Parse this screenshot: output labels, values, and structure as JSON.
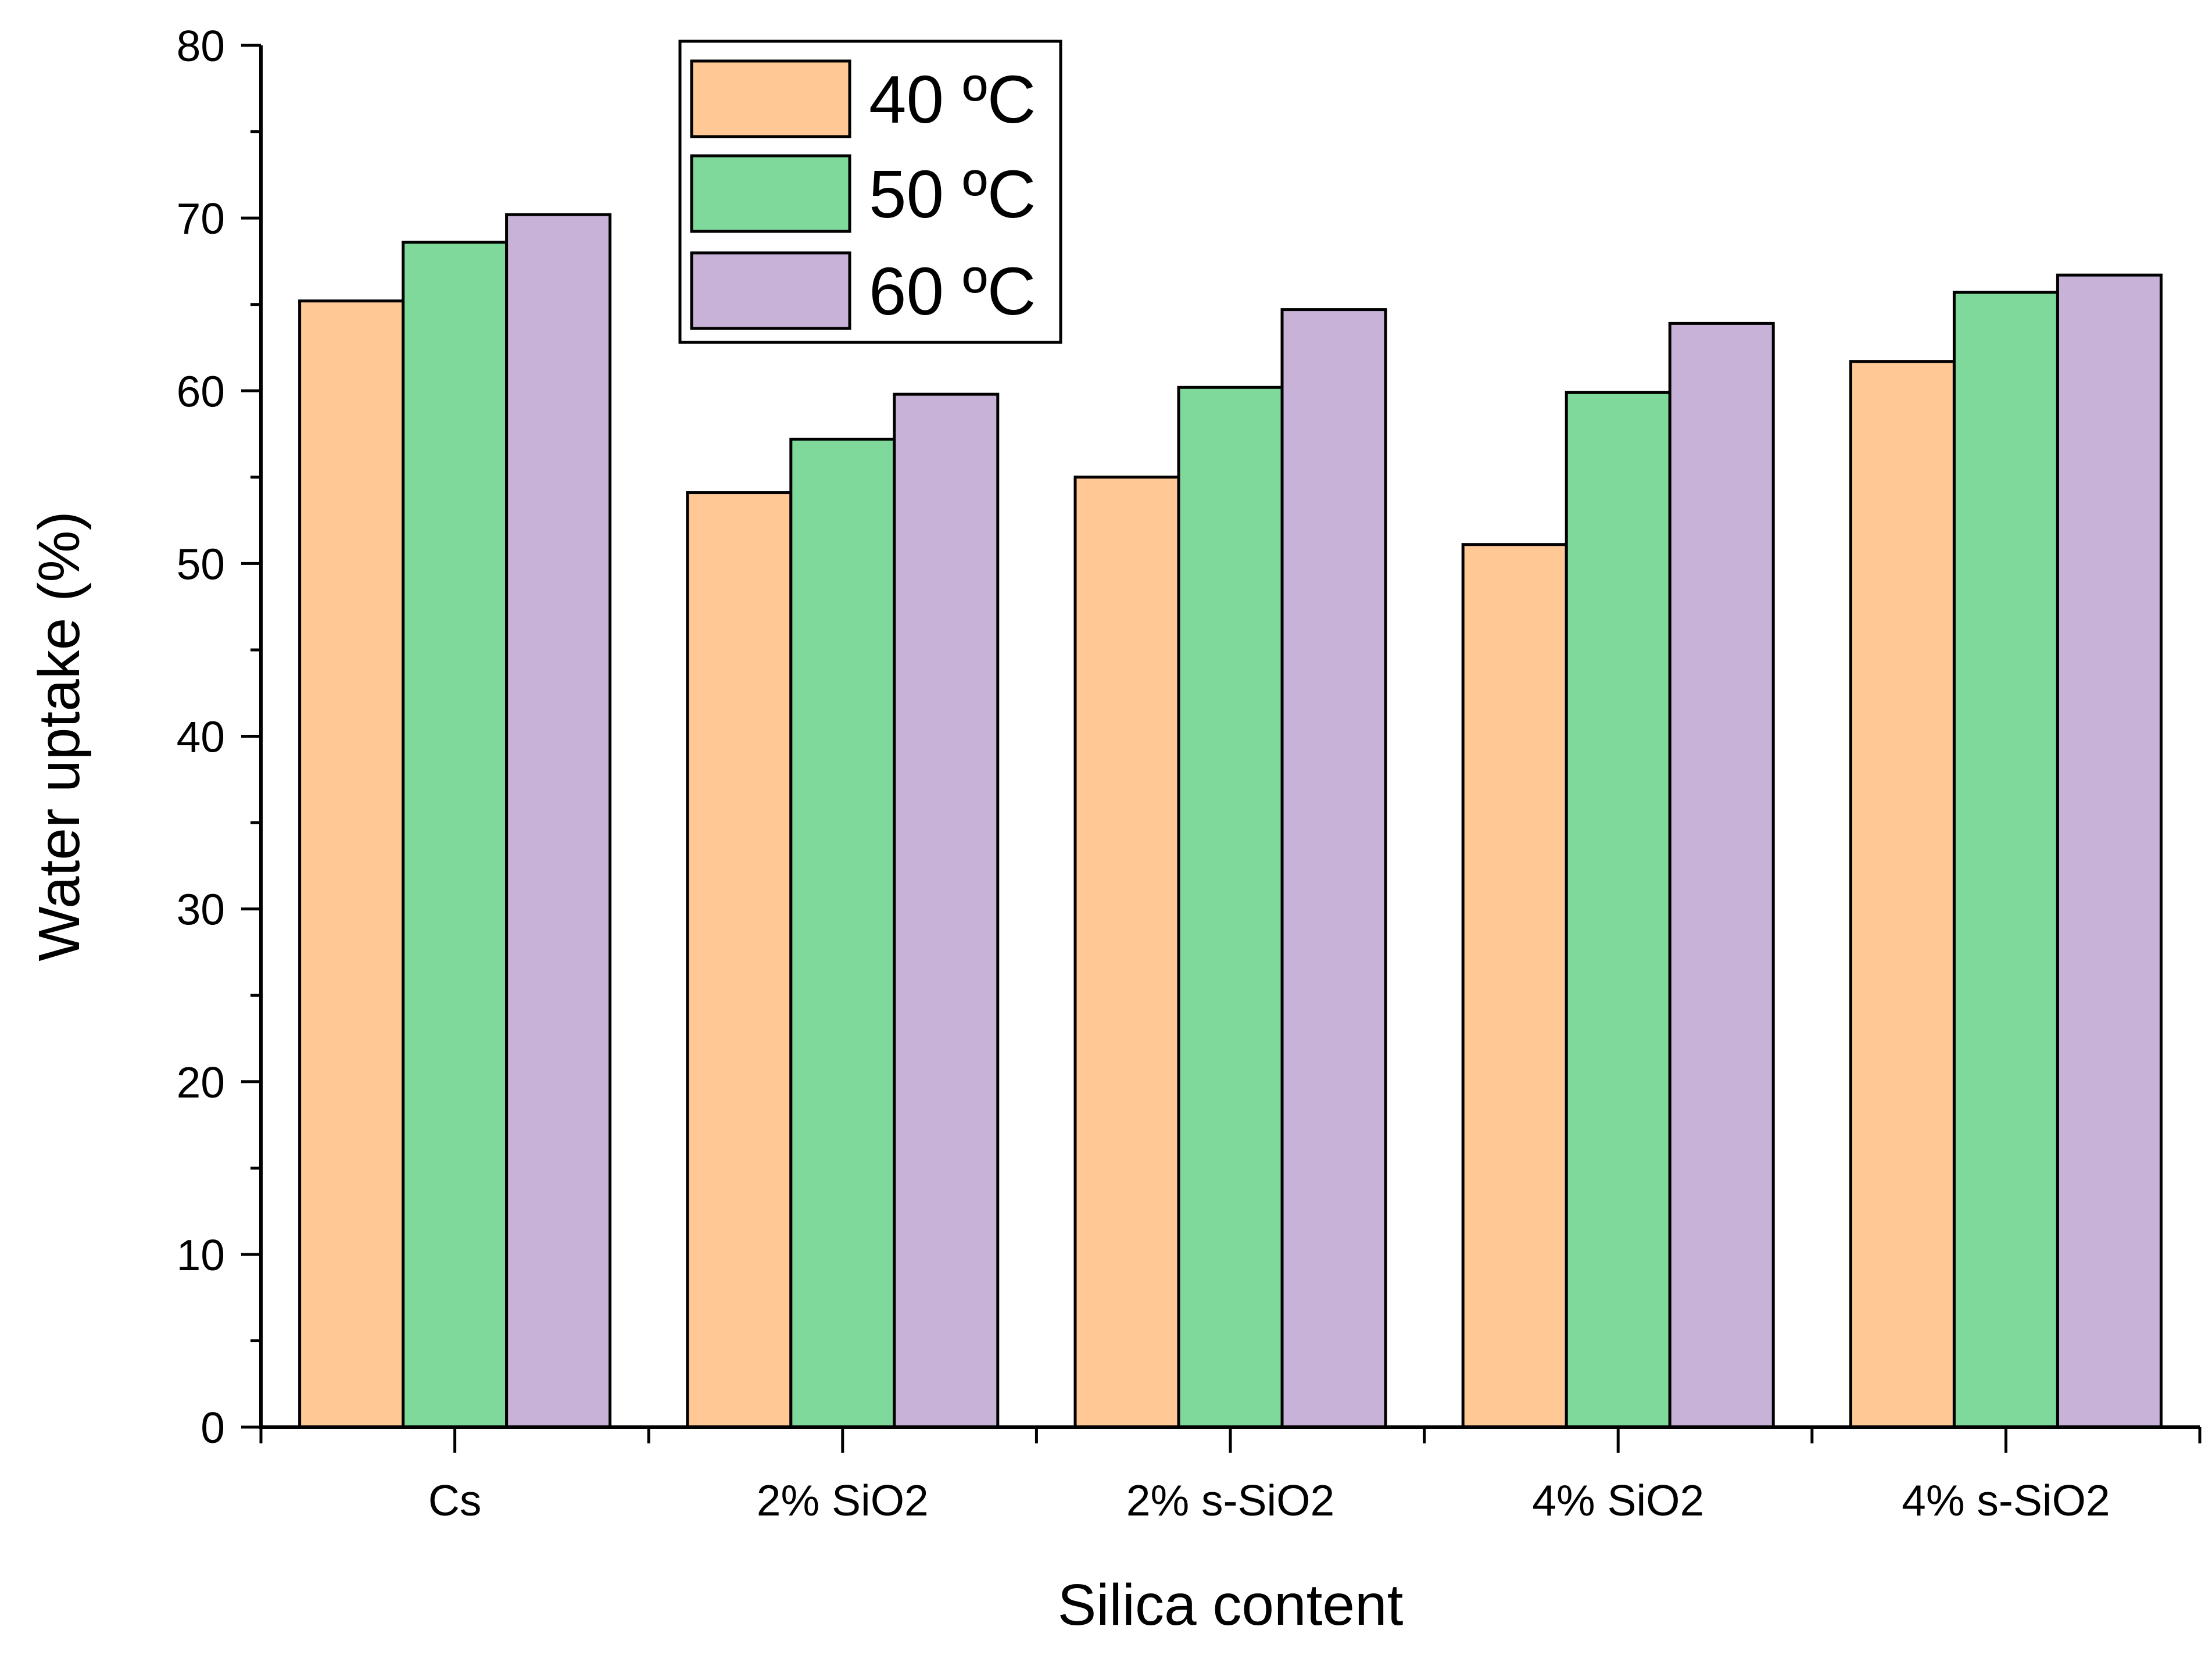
{
  "chart_data": {
    "type": "bar",
    "title": "",
    "xlabel": "Silica content",
    "ylabel": "Water uptake (%)",
    "categories": [
      "Cs",
      "2% SiO2",
      "2% s-SiO2",
      "4% SiO2",
      "4% s-SiO2"
    ],
    "series": [
      {
        "name": "40 ºC",
        "color": "#FFC895",
        "values": [
          65.2,
          54.1,
          55.0,
          51.1,
          61.7
        ]
      },
      {
        "name": "50 ºC",
        "color": "#7FD99A",
        "values": [
          68.6,
          57.2,
          60.2,
          59.9,
          65.7
        ]
      },
      {
        "name": "60 ºC",
        "color": "#C8B2D8",
        "values": [
          70.2,
          59.8,
          64.7,
          63.9,
          66.7
        ]
      }
    ],
    "ylim": [
      0,
      80
    ],
    "yticks": [
      0,
      10,
      20,
      30,
      40,
      50,
      60,
      70,
      80
    ],
    "grid": false,
    "legend_position": "top-left"
  }
}
